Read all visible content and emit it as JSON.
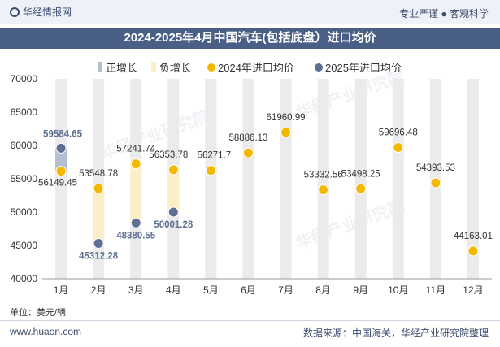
{
  "header": {
    "logo_text": "华经情报网",
    "tagline": "专业严谨 ● 客观科学"
  },
  "chart_data": {
    "type": "bar+scatter",
    "title": "2024-2025年4月中国汽车(包括底盘）进口均价",
    "categories": [
      "1月",
      "2月",
      "3月",
      "4月",
      "5月",
      "6月",
      "7月",
      "8月",
      "9月",
      "10月",
      "11月",
      "12月"
    ],
    "ylim": [
      40000,
      70000
    ],
    "yticks": [
      40000,
      45000,
      50000,
      55000,
      60000,
      65000,
      70000
    ],
    "legend": {
      "positive": "正增长",
      "negative": "负增长",
      "s2024": "2024年进口均价",
      "s2025": "2025年进口均价"
    },
    "series": [
      {
        "name": "2024年进口均价",
        "values": [
          56149.45,
          53548.78,
          57241.74,
          56353.78,
          56271.7,
          58886.13,
          61960.99,
          53332.56,
          53498.25,
          59696.48,
          54393.53,
          44163.01
        ]
      },
      {
        "name": "2025年进口均价",
        "values": [
          59584.65,
          45312.28,
          48380.55,
          50001.28,
          null,
          null,
          null,
          null,
          null,
          null,
          null,
          null
        ]
      }
    ],
    "labels_2024": [
      "56149.45",
      "53548.78",
      "57241.74",
      "56353.78",
      "56271.7",
      "58886.13",
      "61960.99",
      "53332.56",
      "53498.25",
      "59696.48",
      "54393.53",
      "44163.01"
    ],
    "labels_2025": [
      "59584.65",
      "45312.28",
      "48380.55",
      "50001.28"
    ],
    "colors": {
      "positive": "#b4bfd4",
      "negative": "#fcefc8",
      "s2024": "#f5b800",
      "s2025": "#5d6f92",
      "column": "#ebebeb"
    }
  },
  "footer": {
    "unit": "单位：美元/辆",
    "url": "www.huaon.com",
    "source": "数据来源：中国海关，华经产业研究院整理"
  },
  "watermark": "华经产业研究院"
}
